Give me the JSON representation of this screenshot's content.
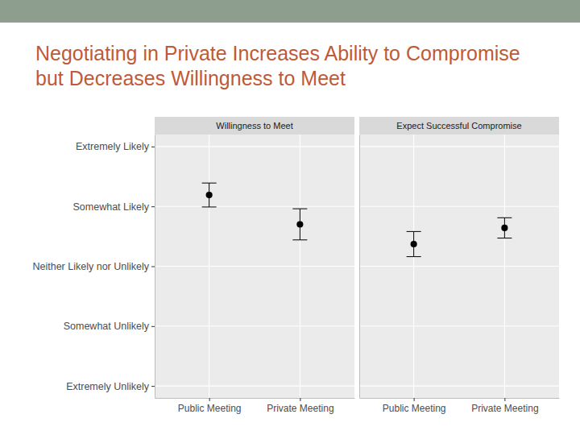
{
  "title": "Negotiating in Private Increases Ability to Compromise but Decreases Willingness to Meet",
  "chart_data": [
    {
      "type": "scatter",
      "title": "Willingness to Meet",
      "categories": [
        "Public Meeting",
        "Private Meeting"
      ],
      "values": [
        4.19,
        3.7
      ],
      "errors": [
        0.2,
        0.26
      ],
      "color": "#000000",
      "marker": "circle",
      "ylim": [
        0.8,
        5.2
      ],
      "yticks": [
        {
          "value": 1,
          "label": "Extremely Unlikely"
        },
        {
          "value": 2,
          "label": "Somewhat Unlikely"
        },
        {
          "value": 3,
          "label": "Neither Likely nor Unlikely"
        },
        {
          "value": 4,
          "label": "Somewhat Likely"
        },
        {
          "value": 5,
          "label": "Extremely Likely"
        }
      ],
      "grid": true
    },
    {
      "type": "scatter",
      "title": "Expect Successful Compromise",
      "categories": [
        "Public Meeting",
        "Private Meeting"
      ],
      "values": [
        3.37,
        3.64
      ],
      "errors": [
        0.21,
        0.17
      ],
      "color": "#000000",
      "marker": "circle",
      "ylim": [
        0.8,
        5.2
      ],
      "yticks": [
        {
          "value": 1,
          "label": "Extremely Unlikely"
        },
        {
          "value": 2,
          "label": "Somewhat Unlikely"
        },
        {
          "value": 3,
          "label": "Neither Likely nor Unlikely"
        },
        {
          "value": 4,
          "label": "Somewhat Likely"
        },
        {
          "value": 5,
          "label": "Extremely Likely"
        }
      ],
      "grid": true,
      "tick_labels": "x"
    }
  ]
}
